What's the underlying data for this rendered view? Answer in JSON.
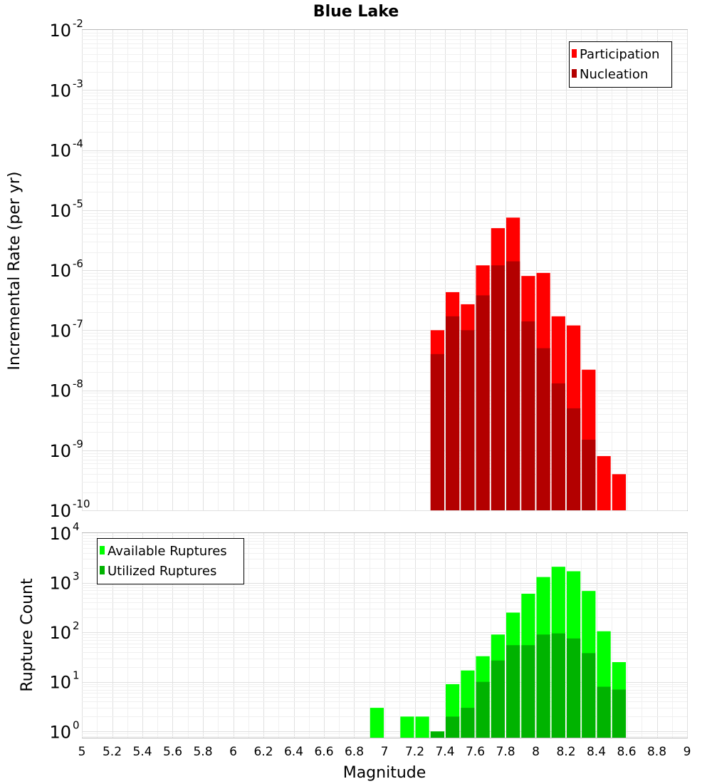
{
  "chart_data": [
    {
      "type": "bar",
      "title": "Blue Lake",
      "ylabel": "Incremental Rate (per yr)",
      "xlabel": "",
      "yscale": "log",
      "ylim": [
        1e-10,
        0.01
      ],
      "xlim": [
        5,
        9
      ],
      "grid": true,
      "legend_position": "top-right",
      "y_ticks": [
        {
          "base": "10",
          "exp": "-2"
        },
        {
          "base": "10",
          "exp": "-3"
        },
        {
          "base": "10",
          "exp": "-4"
        },
        {
          "base": "10",
          "exp": "-5"
        },
        {
          "base": "10",
          "exp": "-6"
        },
        {
          "base": "10",
          "exp": "-7"
        },
        {
          "base": "10",
          "exp": "-8"
        },
        {
          "base": "10",
          "exp": "-9"
        },
        {
          "base": "10",
          "exp": "-10"
        }
      ],
      "x": [
        7.35,
        7.45,
        7.55,
        7.65,
        7.75,
        7.85,
        7.95,
        8.05,
        8.15,
        8.25,
        8.35,
        8.45,
        8.55
      ],
      "series": [
        {
          "name": "Participation",
          "color": "#ff0000",
          "values": [
            1e-07,
            4.3e-07,
            2.7e-07,
            1.2e-06,
            5e-06,
            7.5e-06,
            8e-07,
            9e-07,
            1.7e-07,
            1.2e-07,
            2.2e-08,
            8e-10,
            4e-10
          ]
        },
        {
          "name": "Nucleation",
          "color": "#b30000",
          "values": [
            4e-08,
            1.7e-07,
            1e-07,
            3.8e-07,
            1.2e-06,
            1.4e-06,
            1.4e-07,
            5e-08,
            1.3e-08,
            5e-09,
            1.5e-09,
            null,
            null
          ]
        }
      ]
    },
    {
      "type": "bar",
      "title": "",
      "ylabel": "Rupture Count",
      "xlabel": "Magnitude",
      "yscale": "log",
      "ylim": [
        0.75,
        10000
      ],
      "xlim": [
        5,
        9
      ],
      "grid": true,
      "legend_position": "top-left",
      "y_ticks": [
        {
          "base": "10",
          "exp": "4"
        },
        {
          "base": "10",
          "exp": "3"
        },
        {
          "base": "10",
          "exp": "2"
        },
        {
          "base": "10",
          "exp": "1"
        },
        {
          "base": "10",
          "exp": "0"
        }
      ],
      "x_tick_labels": [
        "5",
        "5.2",
        "5.4",
        "5.6",
        "5.8",
        "6",
        "6.2",
        "6.4",
        "6.6",
        "6.8",
        "7",
        "7.2",
        "7.4",
        "7.6",
        "7.8",
        "8",
        "8.2",
        "8.4",
        "8.6",
        "8.8",
        "9"
      ],
      "x": [
        6.95,
        7.15,
        7.25,
        7.35,
        7.45,
        7.55,
        7.65,
        7.75,
        7.85,
        7.95,
        8.05,
        8.15,
        8.25,
        8.35,
        8.45,
        8.55
      ],
      "series": [
        {
          "name": "Available Ruptures",
          "color": "#00ff00",
          "values": [
            3,
            2,
            2,
            1,
            9,
            17,
            33,
            90,
            250,
            600,
            1300,
            2100,
            1700,
            680,
            105,
            25
          ]
        },
        {
          "name": "Utilized Ruptures",
          "color": "#00b300",
          "values": [
            null,
            null,
            null,
            1,
            2,
            3,
            10,
            27,
            55,
            55,
            90,
            95,
            75,
            38,
            8,
            7
          ]
        }
      ]
    }
  ]
}
